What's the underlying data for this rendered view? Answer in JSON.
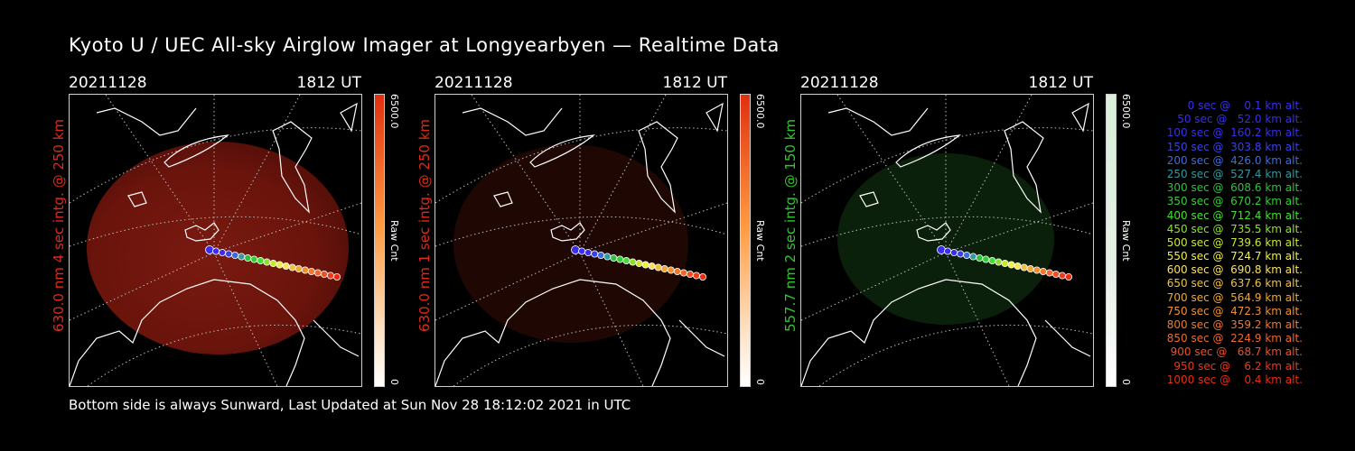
{
  "title": "Kyoto U / UEC All-sky Airglow Imager at Longyearbyen — Realtime Data",
  "footer": "Bottom side is always Sunward, Last Updated at Sun Nov 28 18:12:02 2021 in UTC",
  "panels": [
    {
      "date": "20211128",
      "time": "1812 UT",
      "ylabel": "630.0 nm 4 sec intg. @ 250 km",
      "ylabel_color": "#e02a1a",
      "cbar_max": "6500.0",
      "cbar_min": "0",
      "cbar_label": "Raw Cnt"
    },
    {
      "date": "20211128",
      "time": "1812 UT",
      "ylabel": "630.0 nm 1 sec intg. @ 250 km",
      "ylabel_color": "#e02a1a",
      "cbar_max": "6500.0",
      "cbar_min": "0",
      "cbar_label": "Raw Cnt"
    },
    {
      "date": "20211128",
      "time": "1812 UT",
      "ylabel": "557.7 nm 2 sec intg. @ 150 km",
      "ylabel_color": "#2ec82e",
      "cbar_max": "6500.0",
      "cbar_min": "0",
      "cbar_label": "Raw Cnt"
    }
  ],
  "legend": [
    {
      "text": "   0 sec @    0.1 km alt.",
      "color": "#3a2ef0"
    },
    {
      "text": "  50 sec @   52.0 km alt.",
      "color": "#3a2ef0"
    },
    {
      "text": " 100 sec @  160.2 km alt.",
      "color": "#3a2ef0"
    },
    {
      "text": " 150 sec @  303.8 km alt.",
      "color": "#3a40e8"
    },
    {
      "text": " 200 sec @  426.0 km alt.",
      "color": "#3c6ae0"
    },
    {
      "text": " 250 sec @  527.4 km alt.",
      "color": "#2f9aa0"
    },
    {
      "text": " 300 sec @  608.6 km alt.",
      "color": "#2fc040"
    },
    {
      "text": " 350 sec @  670.2 km alt.",
      "color": "#30d030"
    },
    {
      "text": " 400 sec @  712.4 km alt.",
      "color": "#40e030"
    },
    {
      "text": " 450 sec @  735.5 km alt.",
      "color": "#8ee030"
    },
    {
      "text": " 500 sec @  739.6 km alt.",
      "color": "#c8e830"
    },
    {
      "text": " 550 sec @  724.7 km alt.",
      "color": "#f0f040"
    },
    {
      "text": " 600 sec @  690.8 km alt.",
      "color": "#f8e060"
    },
    {
      "text": " 650 sec @  637.6 km alt.",
      "color": "#f0c040"
    },
    {
      "text": " 700 sec @  564.9 km alt.",
      "color": "#f0a830"
    },
    {
      "text": " 750 sec @  472.3 km alt.",
      "color": "#f09030"
    },
    {
      "text": " 800 sec @  359.2 km alt.",
      "color": "#f07830"
    },
    {
      "text": " 850 sec @  224.9 km alt.",
      "color": "#f06828"
    },
    {
      "text": " 900 sec @   68.7 km alt.",
      "color": "#f05020"
    },
    {
      "text": " 950 sec @    6.2 km alt.",
      "color": "#f03818"
    },
    {
      "text": "1000 sec @    0.4 km alt.",
      "color": "#f02a10"
    }
  ]
}
